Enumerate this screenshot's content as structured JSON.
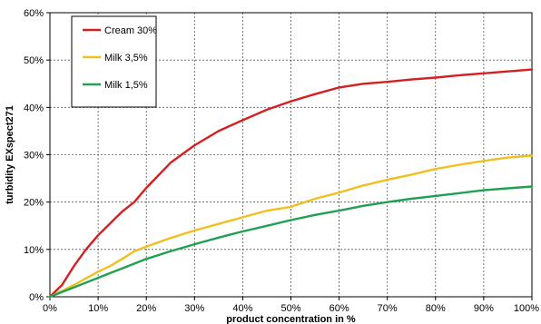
{
  "chart_data": {
    "type": "line",
    "xlabel": "product concentration in %",
    "ylabel": "turbidity EXspect271",
    "xlim": [
      0,
      100
    ],
    "ylim": [
      0,
      60
    ],
    "x_ticks": [
      0,
      10,
      20,
      30,
      40,
      50,
      60,
      70,
      80,
      90,
      100
    ],
    "x_tick_labels": [
      "0%",
      "10%",
      "20%",
      "30%",
      "40%",
      "50%",
      "60%",
      "70%",
      "80%",
      "90%",
      "100%"
    ],
    "y_ticks": [
      0,
      10,
      20,
      30,
      40,
      50,
      60
    ],
    "y_tick_labels": [
      "0%",
      "10%",
      "20%",
      "30%",
      "40%",
      "50%",
      "60%"
    ],
    "grid": true,
    "legend_position": "top-left",
    "series": [
      {
        "name": "Cream 30%",
        "color": "#d42020",
        "x": [
          0,
          2.5,
          5,
          7.5,
          10,
          12.5,
          15,
          17.5,
          20,
          25,
          30,
          35,
          40,
          45,
          50,
          55,
          60,
          65,
          70,
          75,
          80,
          85,
          90,
          95,
          100
        ],
        "y": [
          0,
          2.5,
          6.5,
          10,
          13,
          15.5,
          18,
          20,
          23,
          28.3,
          32,
          35,
          37.3,
          39.5,
          41.3,
          42.8,
          44.2,
          45,
          45.4,
          45.9,
          46.3,
          46.8,
          47.2,
          47.6,
          48
        ]
      },
      {
        "name": "Milk 3,5%",
        "color": "#f0c020",
        "x": [
          0,
          2.5,
          5,
          7.5,
          10,
          12.5,
          15,
          17.5,
          20,
          25,
          30,
          35,
          40,
          45,
          50,
          55,
          60,
          65,
          70,
          75,
          80,
          85,
          90,
          95,
          100
        ],
        "y": [
          0,
          1.2,
          2.5,
          3.9,
          5.3,
          6.5,
          8,
          9.6,
          10.6,
          12.4,
          14,
          15.4,
          16.8,
          18.2,
          19,
          20.7,
          22,
          23.5,
          24.7,
          25.8,
          27,
          27.9,
          28.7,
          29.4,
          29.8
        ]
      },
      {
        "name": "Milk 1,5%",
        "color": "#20a050",
        "x": [
          0,
          2.5,
          5,
          7.5,
          10,
          12.5,
          15,
          17.5,
          20,
          25,
          30,
          35,
          40,
          45,
          50,
          55,
          60,
          65,
          70,
          75,
          80,
          85,
          90,
          95,
          100
        ],
        "y": [
          0,
          1,
          2,
          3,
          4,
          5,
          6,
          7,
          8,
          9.6,
          11.1,
          12.5,
          13.8,
          15,
          16.2,
          17.3,
          18.2,
          19.2,
          20,
          20.7,
          21.3,
          21.9,
          22.5,
          22.9,
          23.3
        ]
      }
    ]
  }
}
